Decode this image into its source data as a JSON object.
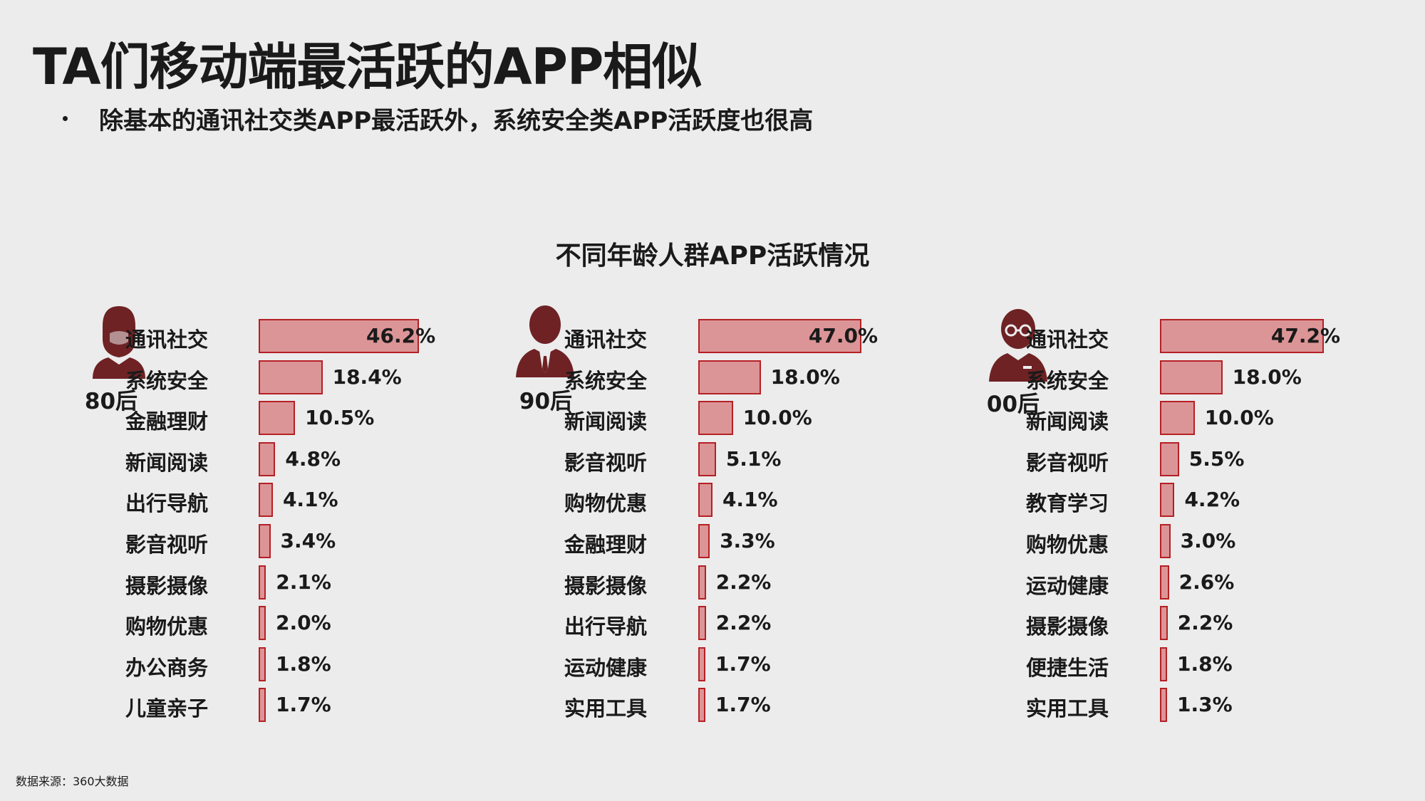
{
  "title": "TA们移动端最活跃的APP相似",
  "bullet": "除基本的通讯社交类APP最活跃外，系统安全类APP活跃度也很高",
  "source_note": "数据来源：360大数据",
  "colors": {
    "bar_fill": "#dc9597",
    "bar_border": "#b52024",
    "avatar": "#6e2224"
  },
  "chart_data": {
    "type": "bar",
    "orientation": "horizontal",
    "title": "不同年龄人群APP活跃情况",
    "groups": [
      {
        "name": "80后",
        "icon": "man-with-beard-icon",
        "categories": [
          "通讯社交",
          "系统安全",
          "金融理财",
          "新闻阅读",
          "出行导航",
          "影音视听",
          "摄影摄像",
          "购物优惠",
          "办公商务",
          "儿童亲子"
        ],
        "values": [
          46.2,
          18.4,
          10.5,
          4.8,
          4.1,
          3.4,
          2.1,
          2.0,
          1.8,
          1.7
        ],
        "labels": [
          "46.2%",
          "18.4%",
          "10.5%",
          "4.8%",
          "4.1%",
          "3.4%",
          "2.1%",
          "2.0%",
          "1.8%",
          "1.7%"
        ]
      },
      {
        "name": "90后",
        "icon": "man-in-suit-icon",
        "categories": [
          "通讯社交",
          "系统安全",
          "新闻阅读",
          "影音视听",
          "购物优惠",
          "金融理财",
          "摄影摄像",
          "出行导航",
          "运动健康",
          "实用工具"
        ],
        "values": [
          47.0,
          18.0,
          10.0,
          5.1,
          4.1,
          3.3,
          2.2,
          2.2,
          1.7,
          1.7
        ],
        "labels": [
          "47.0%",
          "18.0%",
          "10.0%",
          "5.1%",
          "4.1%",
          "3.3%",
          "2.2%",
          "2.2%",
          "1.7%",
          "1.7%"
        ]
      },
      {
        "name": "00后",
        "icon": "student-with-glasses-icon",
        "categories": [
          "通讯社交",
          "系统安全",
          "新闻阅读",
          "影音视听",
          "教育学习",
          "购物优惠",
          "运动健康",
          "摄影摄像",
          "便捷生活",
          "实用工具"
        ],
        "values": [
          47.2,
          18.0,
          10.0,
          5.5,
          4.2,
          3.0,
          2.6,
          2.2,
          1.8,
          1.3
        ],
        "labels": [
          "47.2%",
          "18.0%",
          "10.0%",
          "5.5%",
          "4.2%",
          "3.0%",
          "2.6%",
          "2.2%",
          "1.8%",
          "1.3%"
        ]
      }
    ]
  }
}
